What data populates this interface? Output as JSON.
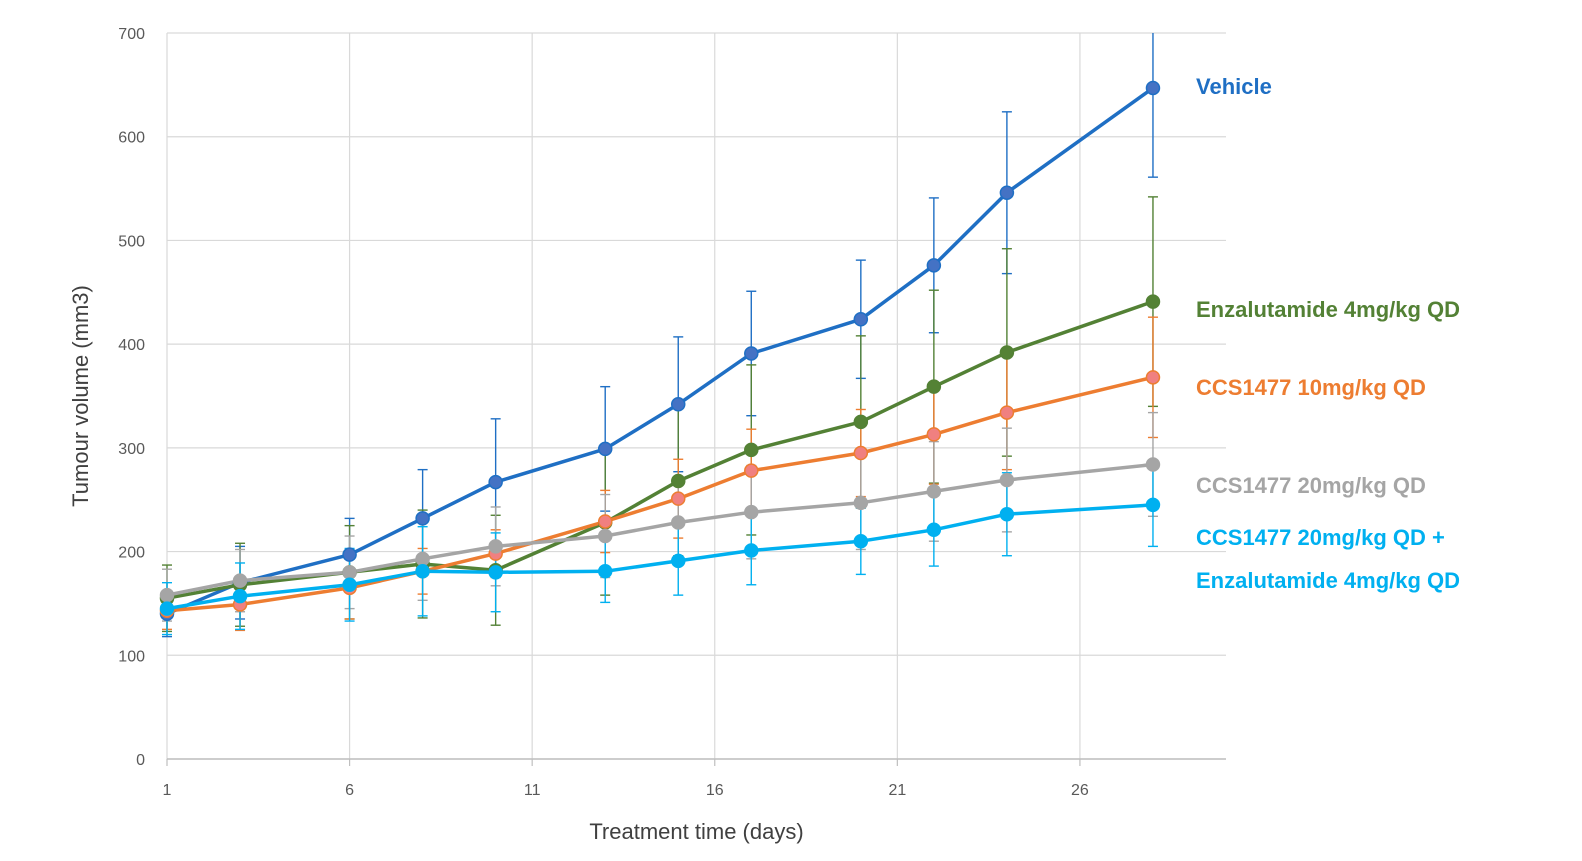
{
  "chart_data": {
    "type": "line",
    "xlabel": "Treatment time (days)",
    "ylabel": "Tumour volume (mm3)",
    "xlim": [
      1,
      30
    ],
    "ylim": [
      0,
      700
    ],
    "x_ticks": [
      1,
      6,
      11,
      16,
      21,
      26
    ],
    "y_ticks": [
      0,
      100,
      200,
      300,
      400,
      500,
      600,
      700
    ],
    "grid": "both",
    "error_bars": true,
    "legend_placement": "right (labels beside line ends)",
    "series": [
      {
        "name": "Vehicle",
        "color": "#1f6fc4",
        "marker_color": "#4472c4",
        "x": [
          1,
          3,
          6,
          8,
          10,
          13,
          15,
          17,
          20,
          22,
          24,
          28
        ],
        "y": [
          140,
          170,
          197,
          232,
          267,
          299,
          342,
          391,
          424,
          476,
          546,
          647
        ],
        "err": [
          22,
          35,
          35,
          47,
          61,
          60,
          65,
          60,
          57,
          65,
          78,
          86
        ]
      },
      {
        "name": "Enzalutamide 4mg/kg QD",
        "color": "#538135",
        "marker_color": "#548235",
        "x": [
          1,
          3,
          6,
          8,
          10,
          13,
          15,
          17,
          20,
          22,
          24,
          28
        ],
        "y": [
          155,
          168,
          180,
          188,
          182,
          228,
          268,
          298,
          325,
          359,
          392,
          441
        ],
        "err": [
          32,
          40,
          45,
          52,
          53,
          70,
          72,
          82,
          83,
          93,
          100,
          101
        ]
      },
      {
        "name": "CCS1477 10mg/kg QD",
        "color": "#ed7d31",
        "marker_color": "#f08080",
        "x": [
          1,
          3,
          6,
          8,
          10,
          13,
          15,
          17,
          20,
          22,
          24,
          28
        ],
        "y": [
          143,
          149,
          165,
          181,
          198,
          229,
          251,
          278,
          295,
          313,
          334,
          368
        ],
        "err": [
          18,
          25,
          30,
          22,
          23,
          30,
          38,
          40,
          42,
          48,
          55,
          58
        ]
      },
      {
        "name": "CCS1477 20mg/kg QD",
        "color": "#a5a5a5",
        "marker_color": "#a5a5a5",
        "x": [
          1,
          3,
          6,
          8,
          10,
          13,
          15,
          17,
          20,
          22,
          24,
          28
        ],
        "y": [
          158,
          172,
          180,
          193,
          205,
          215,
          228,
          238,
          247,
          258,
          269,
          284
        ],
        "err": [
          25,
          30,
          35,
          40,
          38,
          40,
          40,
          45,
          45,
          48,
          50,
          50
        ]
      },
      {
        "name": "CCS1477 20mg/kg QD + Enzalutamide 4mg/kg QD",
        "name_lines": [
          "CCS1477 20mg/kg QD +",
          "Enzalutamide 4mg/kg QD"
        ],
        "color": "#00b0f0",
        "marker_color": "#00b0f0",
        "x": [
          1,
          3,
          6,
          8,
          10,
          13,
          15,
          17,
          20,
          22,
          24,
          28
        ],
        "y": [
          145,
          157,
          168,
          181,
          180,
          181,
          191,
          201,
          210,
          221,
          236,
          245
        ],
        "err": [
          25,
          32,
          35,
          43,
          38,
          30,
          33,
          33,
          32,
          35,
          40,
          40
        ]
      }
    ]
  }
}
